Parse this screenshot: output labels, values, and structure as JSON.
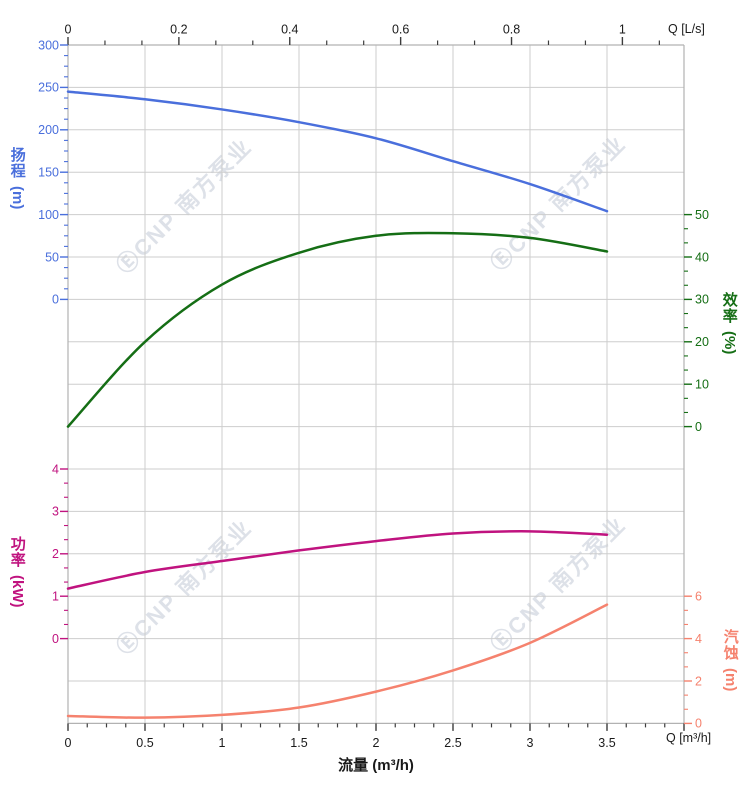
{
  "watermark": {
    "text": "ⒺCNP 南方泵业"
  },
  "palette": {
    "grid": "#cdcdcd",
    "spine": "#b2b2b2",
    "x_tick": "#3c3c3c",
    "x_text": "#1a1a1a",
    "watermark": "#c3c9d6"
  },
  "axes": {
    "flow_top": {
      "unit_label": "Q [L/s]",
      "ticks": [
        0,
        0.2,
        0.4,
        0.6,
        0.8,
        1
      ]
    },
    "flow_bottom": {
      "unit_label": "Q [m³/h]",
      "title": "流量 (m³/h)",
      "ticks": [
        0,
        0.5,
        1,
        1.5,
        2,
        2.5,
        3,
        3.5
      ]
    },
    "head": {
      "title": "扬程",
      "unit": "(m)",
      "color": "#4a6fdc",
      "ticks": [
        300,
        250,
        200,
        150,
        100,
        50,
        0
      ]
    },
    "efficiency": {
      "title": "效率",
      "unit": "(%)",
      "color": "#156e15",
      "ticks": [
        50,
        40,
        30,
        20,
        10,
        0
      ]
    },
    "power": {
      "title": "功率",
      "unit": "(kW)",
      "color": "#c0137f",
      "ticks": [
        4,
        3,
        2,
        1,
        0
      ]
    },
    "npsh": {
      "title": "汽蚀",
      "unit": "(m)",
      "color": "#f5826e",
      "ticks": [
        6,
        4,
        2,
        0
      ]
    }
  },
  "chart_data": {
    "type": "line",
    "title": "",
    "xlabel": "流量 (m³/h)",
    "xlabel_top": "Q [L/s]",
    "x_range_m3h": [
      0,
      4
    ],
    "x_range_ls": [
      0,
      1.111
    ],
    "ls_to_m3h": 3.6,
    "grid": true,
    "x": [
      0,
      0.5,
      1,
      1.5,
      2,
      2.5,
      3,
      3.5
    ],
    "series": [
      {
        "name": "扬程",
        "unit": "m",
        "axis": "head",
        "color": "#4a6fdc",
        "y_range": [
          0,
          300
        ],
        "values": [
          245,
          236,
          224,
          209,
          190,
          163,
          136,
          104
        ]
      },
      {
        "name": "效率",
        "unit": "%",
        "axis": "efficiency",
        "color": "#156e15",
        "y_range": [
          0,
          50
        ],
        "values": [
          0,
          20,
          33.5,
          41,
          45,
          45.6,
          44.5,
          41.3
        ]
      },
      {
        "name": "功率",
        "unit": "kW",
        "axis": "power",
        "color": "#c0137f",
        "y_range": [
          0,
          4
        ],
        "values": [
          1.18,
          1.57,
          1.83,
          2.08,
          2.3,
          2.48,
          2.53,
          2.45
        ]
      },
      {
        "name": "汽蚀",
        "unit": "m",
        "axis": "npsh",
        "color": "#f5826e",
        "y_range": [
          0,
          6
        ],
        "values": [
          0.35,
          0.27,
          0.4,
          0.75,
          1.5,
          2.5,
          3.8,
          5.6
        ]
      }
    ]
  }
}
